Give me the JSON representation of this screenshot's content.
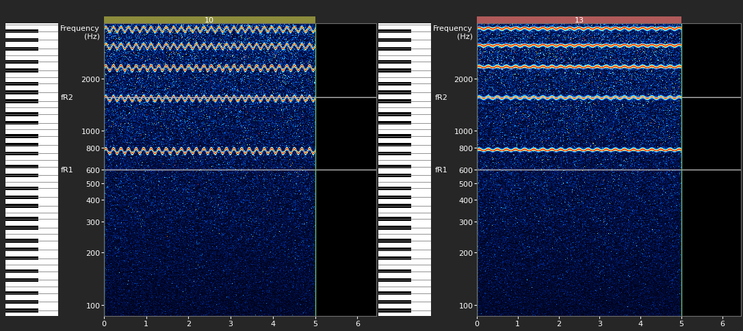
{
  "chart_data": [
    {
      "type": "spectrogram",
      "title": "10",
      "color": "#8c8c3c",
      "y_label": "Frequency\n(Hz)",
      "log": "y",
      "xlim": [
        0,
        6.45
      ],
      "xticks": [
        0,
        1,
        2,
        3,
        4,
        5,
        6
      ],
      "ylim": [
        86,
        4150
      ],
      "yticks": [
        100,
        200,
        300,
        400,
        500,
        600,
        800,
        1000,
        2000
      ],
      "signal_end": 5,
      "fundamental": 765,
      "harmonics": [
        1,
        2,
        3,
        4,
        5
      ],
      "vibrato_rate": 5.6,
      "vibrato_depth": 25,
      "reference_lines": [
        {
          "label": "fR2",
          "value": 1560
        },
        {
          "label": "fR1",
          "value": 600
        }
      ]
    },
    {
      "type": "spectrogram",
      "title": "13",
      "color": "#b05a5a",
      "y_label": "Frequency\n(Hz)",
      "log": "y",
      "xlim": [
        0,
        6.45
      ],
      "xticks": [
        0,
        1,
        2,
        3,
        4,
        5,
        6
      ],
      "ylim": [
        86,
        4150
      ],
      "yticks": [
        100,
        200,
        300,
        400,
        500,
        600,
        800,
        1000,
        2000
      ],
      "signal_end": 5,
      "fundamental": 775,
      "harmonics": [
        1,
        2,
        3,
        4,
        5
      ],
      "vibrato_rate": 4.5,
      "vibrato_depth": 8,
      "reference_lines": [
        {
          "label": "fR2",
          "value": 1560
        },
        {
          "label": "fR1",
          "value": 600
        }
      ]
    }
  ]
}
